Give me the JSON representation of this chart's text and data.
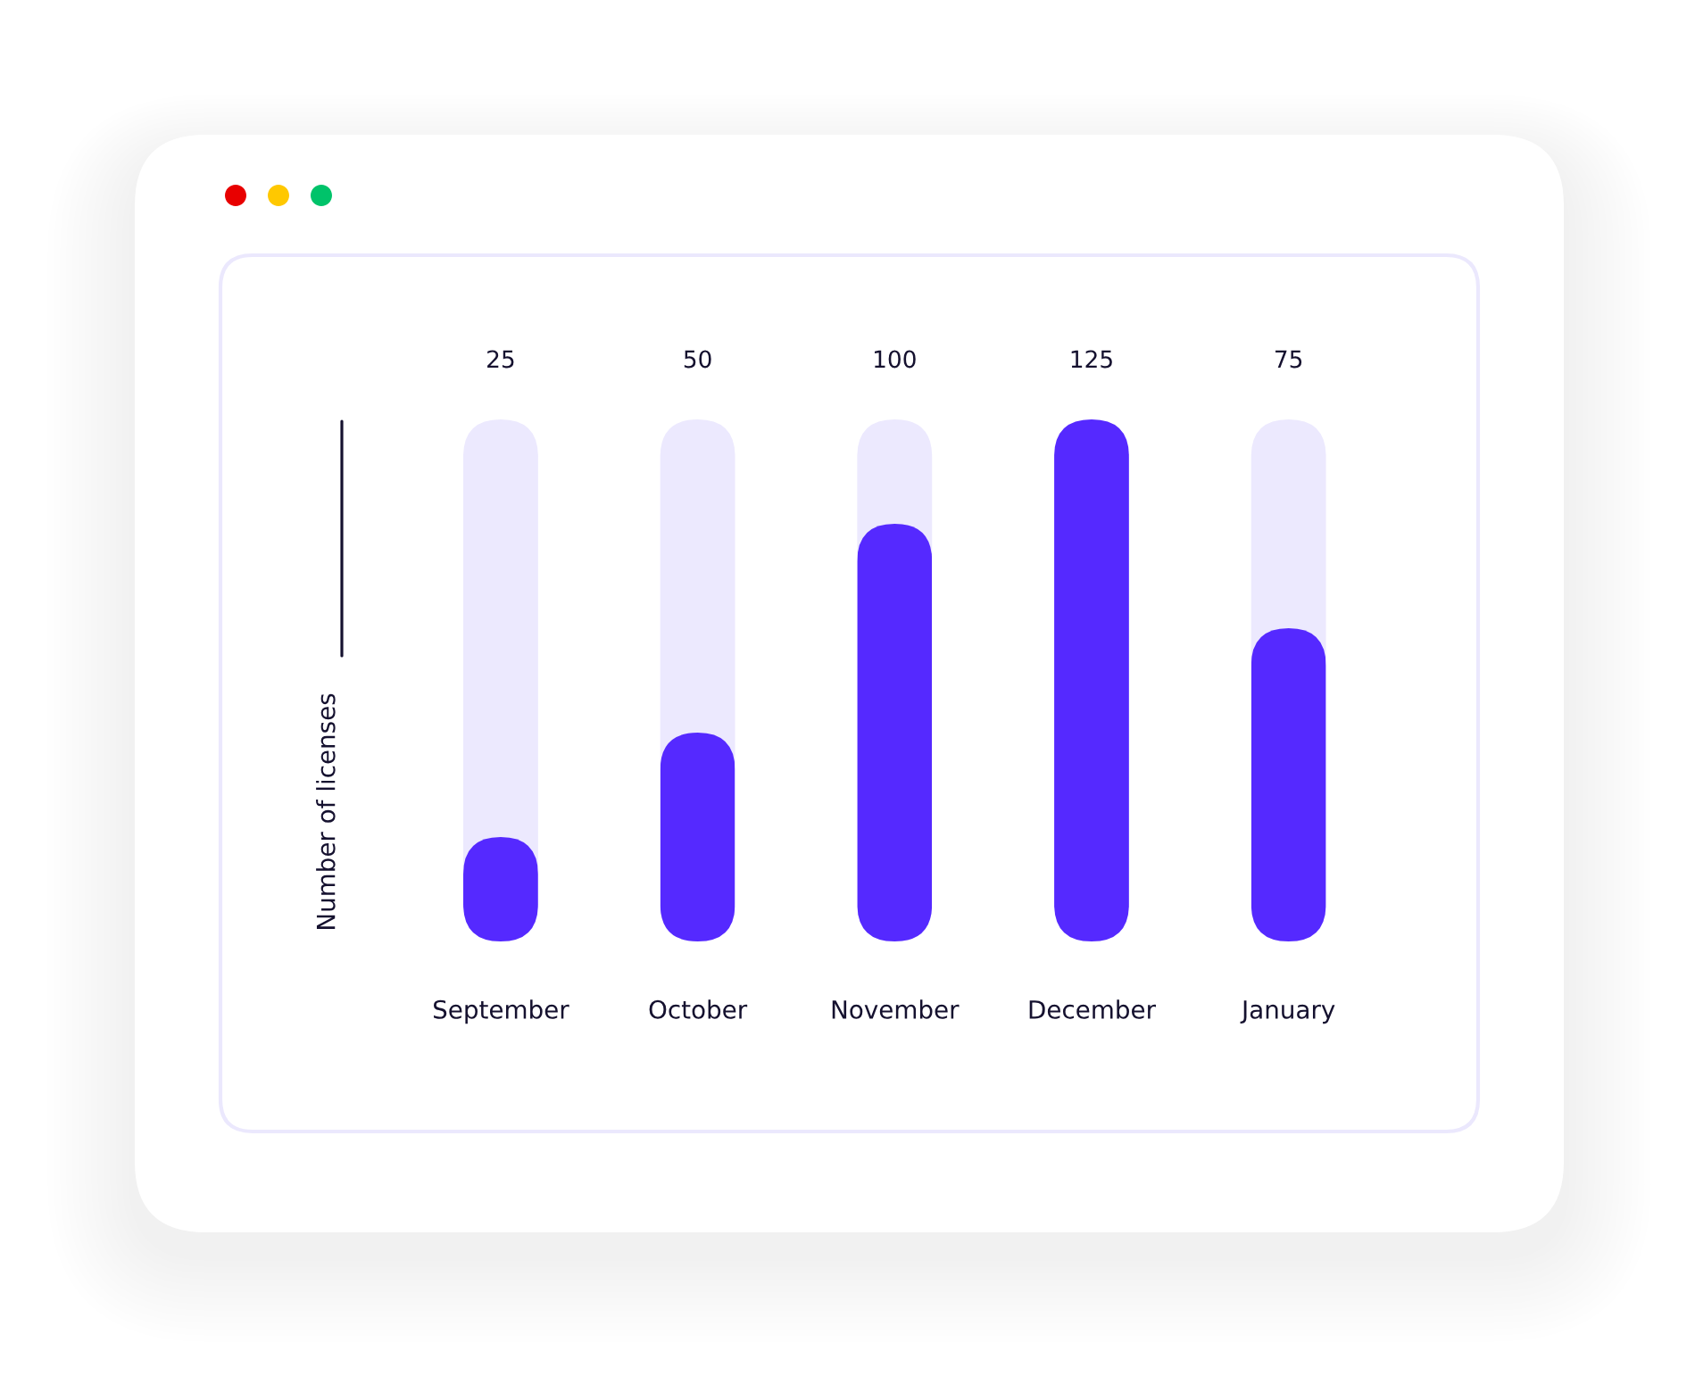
{
  "chart_data": {
    "type": "bar",
    "ylabel": "Number of licenses",
    "categories": [
      "September",
      "October",
      "November",
      "December",
      "January"
    ],
    "values": [
      25,
      50,
      100,
      125,
      75
    ],
    "color": "#5529ff",
    "ylim": [
      0,
      125
    ],
    "data_labels": true,
    "tick_labels": "x"
  }
}
